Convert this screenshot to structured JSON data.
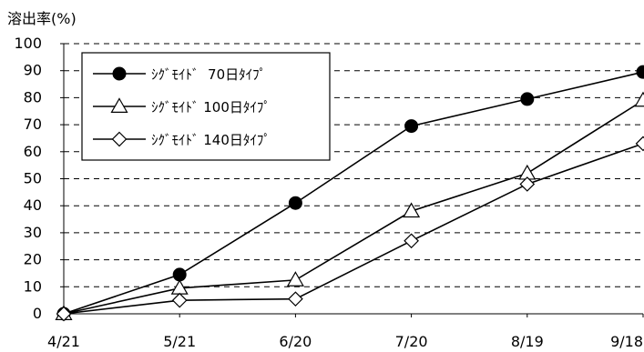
{
  "chart_data": {
    "type": "line",
    "title": "",
    "ylabel": "溶出率(%)",
    "xlabel": "",
    "categories": [
      "4/21",
      "5/21",
      "6/20",
      "7/20",
      "8/19",
      "9/18"
    ],
    "ylim": [
      0,
      100
    ],
    "yticks": [
      "0",
      "10",
      "20",
      "30",
      "40",
      "50",
      "60",
      "70",
      "80",
      "90",
      "100"
    ],
    "grid": "horizontal dashed",
    "legend_position": "top-left",
    "series": [
      {
        "name": "ｼｸﾞﾓｲﾄﾞ  70日ﾀｲﾌﾟ",
        "marker": "circle-filled",
        "values": [
          0,
          14.5,
          41,
          69.5,
          79.5,
          89.5
        ]
      },
      {
        "name": "ｼｸﾞﾓｲﾄﾞ 100日ﾀｲﾌﾟ",
        "marker": "triangle-open",
        "values": [
          0,
          9.5,
          12.5,
          38,
          52,
          79
        ]
      },
      {
        "name": "ｼｸﾞﾓｲﾄﾞ 140日ﾀｲﾌﾟ",
        "marker": "diamond-open",
        "values": [
          0,
          5,
          5.5,
          27,
          48,
          63
        ]
      }
    ]
  }
}
